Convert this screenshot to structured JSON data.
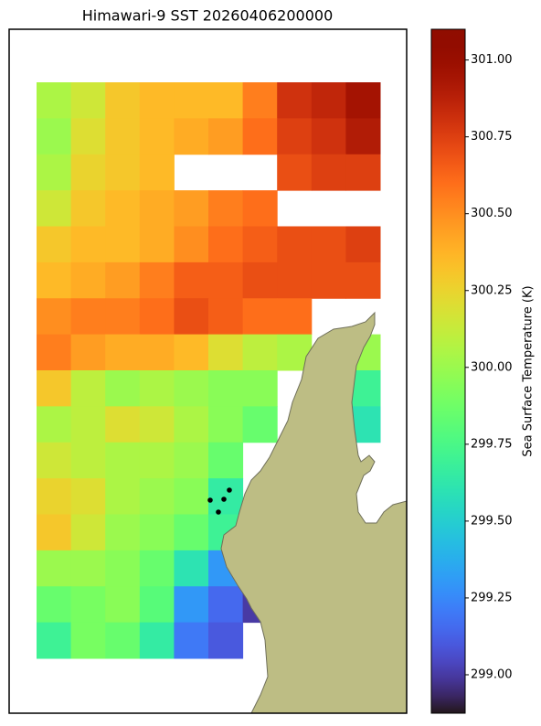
{
  "chart_data": {
    "type": "heatmap",
    "title": "Himawari-9 SST 20260406200000",
    "colorbar_label": "Sea Surface Temperature (K)",
    "colormap": "turbo",
    "clim": [
      298.875,
      301.1
    ],
    "cticks": [
      {
        "value": 299,
        "label": "299.00"
      },
      299.25,
      {
        "value": 299.5,
        "label": "299.50"
      },
      299.75,
      {
        "value": 300,
        "label": "300.00"
      },
      300.25,
      {
        "value": 300.5,
        "label": "300.50"
      },
      300.75,
      {
        "value": 301,
        "label": "301.00"
      }
    ],
    "values": [
      [
        300.05,
        300.15,
        300.3,
        300.35,
        300.35,
        300.35,
        300.55,
        300.8,
        300.85,
        300.95
      ],
      [
        300.0,
        300.2,
        300.3,
        300.35,
        300.4,
        300.45,
        300.6,
        300.75,
        300.8,
        300.9
      ],
      [
        300.05,
        300.25,
        300.3,
        300.35,
        null,
        null,
        null,
        300.7,
        300.75,
        300.75
      ],
      [
        300.15,
        300.3,
        300.35,
        300.4,
        300.45,
        300.55,
        300.6,
        null,
        null,
        null
      ],
      [
        300.3,
        300.35,
        300.35,
        300.4,
        300.5,
        300.6,
        300.65,
        300.7,
        300.7,
        300.75
      ],
      [
        300.35,
        300.4,
        300.45,
        300.55,
        300.65,
        300.65,
        300.7,
        300.7,
        300.7,
        300.7
      ],
      [
        300.5,
        300.55,
        300.55,
        300.6,
        300.7,
        300.65,
        300.6,
        300.6,
        null,
        null
      ],
      [
        300.55,
        300.45,
        300.4,
        300.4,
        300.35,
        300.2,
        300.1,
        300.05,
        null,
        300.0
      ],
      [
        300.3,
        300.1,
        300.0,
        300.05,
        300.0,
        299.95,
        299.95,
        null,
        null,
        299.7
      ],
      [
        300.05,
        300.1,
        300.2,
        300.15,
        300.05,
        299.95,
        299.85,
        null,
        null,
        299.6
      ],
      [
        300.15,
        300.1,
        300.05,
        300.05,
        300.0,
        299.85,
        null,
        null,
        null,
        null
      ],
      [
        300.25,
        300.2,
        300.05,
        300.0,
        299.95,
        299.65,
        null,
        null,
        null,
        null
      ],
      [
        300.3,
        300.15,
        300.0,
        299.95,
        299.85,
        299.7,
        null,
        null,
        null,
        null
      ],
      [
        300.0,
        300.0,
        299.95,
        299.85,
        299.6,
        299.3,
        null,
        null,
        null,
        null
      ],
      [
        299.85,
        299.9,
        299.95,
        299.8,
        299.3,
        299.15,
        299.0,
        null,
        null,
        null
      ],
      [
        299.7,
        299.9,
        299.85,
        299.65,
        299.2,
        299.1,
        null,
        null,
        null,
        null
      ]
    ]
  }
}
